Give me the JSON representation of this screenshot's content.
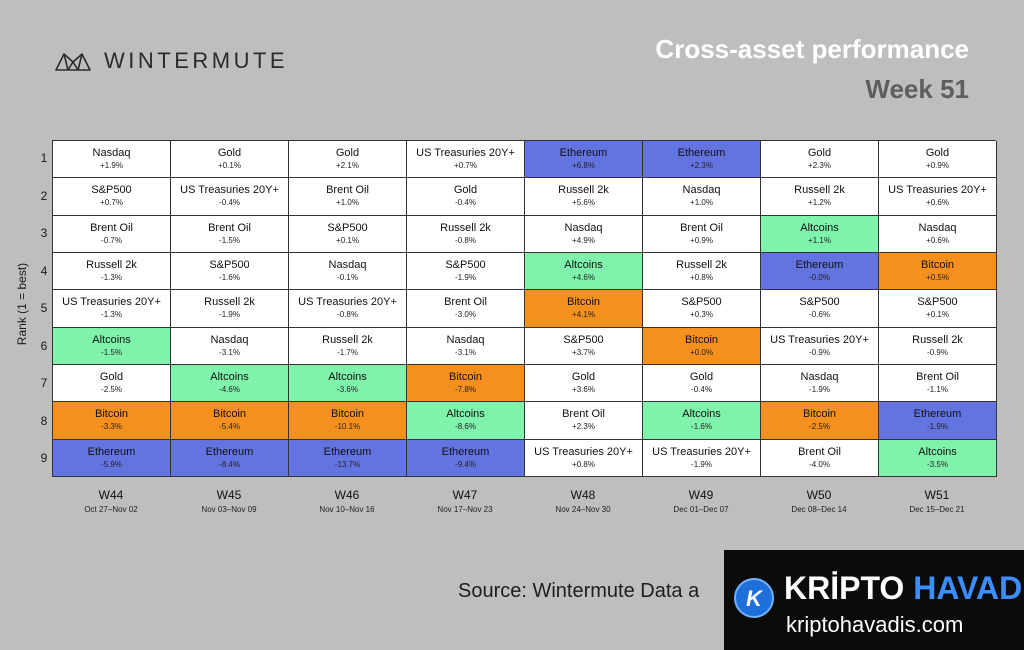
{
  "brand": {
    "logo_icon": "wintermute-logo-icon",
    "name": "WINTERMUTE"
  },
  "header": {
    "title": "Cross-asset performance",
    "subtitle": "Week 51"
  },
  "colors": {
    "Ethereum": "#6374e1",
    "Bitcoin": "#f5901e",
    "Altcoins": "#7ff2ab",
    "default": "#ffffff"
  },
  "chart_data": {
    "type": "table",
    "ylabel": "Rank (1 = best)",
    "ranks": [
      "1",
      "2",
      "3",
      "4",
      "5",
      "6",
      "7",
      "8",
      "9"
    ],
    "weeks": [
      {
        "label": "W44",
        "range": "Oct 27–Nov 02",
        "cells": [
          {
            "asset": "Nasdaq",
            "ret": "+1.9%"
          },
          {
            "asset": "S&P500",
            "ret": "+0.7%"
          },
          {
            "asset": "Brent Oil",
            "ret": "-0.7%"
          },
          {
            "asset": "Russell 2k",
            "ret": "-1.3%"
          },
          {
            "asset": "US Treasuries 20Y+",
            "ret": "-1.3%"
          },
          {
            "asset": "Altcoins",
            "ret": "-1.5%"
          },
          {
            "asset": "Gold",
            "ret": "-2.5%"
          },
          {
            "asset": "Bitcoin",
            "ret": "-3.3%"
          },
          {
            "asset": "Ethereum",
            "ret": "-5.9%"
          }
        ]
      },
      {
        "label": "W45",
        "range": "Nov 03–Nov 09",
        "cells": [
          {
            "asset": "Gold",
            "ret": "+0.1%"
          },
          {
            "asset": "US Treasuries 20Y+",
            "ret": "-0.4%"
          },
          {
            "asset": "Brent Oil",
            "ret": "-1.5%"
          },
          {
            "asset": "S&P500",
            "ret": "-1.6%"
          },
          {
            "asset": "Russell 2k",
            "ret": "-1.9%"
          },
          {
            "asset": "Nasdaq",
            "ret": "-3.1%"
          },
          {
            "asset": "Altcoins",
            "ret": "-4.6%"
          },
          {
            "asset": "Bitcoin",
            "ret": "-5.4%"
          },
          {
            "asset": "Ethereum",
            "ret": "-8.4%"
          }
        ]
      },
      {
        "label": "W46",
        "range": "Nov 10–Nov 16",
        "cells": [
          {
            "asset": "Gold",
            "ret": "+2.1%"
          },
          {
            "asset": "Brent Oil",
            "ret": "+1.0%"
          },
          {
            "asset": "S&P500",
            "ret": "+0.1%"
          },
          {
            "asset": "Nasdaq",
            "ret": "-0.1%"
          },
          {
            "asset": "US Treasuries 20Y+",
            "ret": "-0.8%"
          },
          {
            "asset": "Russell 2k",
            "ret": "-1.7%"
          },
          {
            "asset": "Altcoins",
            "ret": "-3.6%"
          },
          {
            "asset": "Bitcoin",
            "ret": "-10.1%"
          },
          {
            "asset": "Ethereum",
            "ret": "-13.7%"
          }
        ]
      },
      {
        "label": "W47",
        "range": "Nov 17–Nov 23",
        "cells": [
          {
            "asset": "US Treasuries 20Y+",
            "ret": "+0.7%"
          },
          {
            "asset": "Gold",
            "ret": "-0.4%"
          },
          {
            "asset": "Russell 2k",
            "ret": "-0.8%"
          },
          {
            "asset": "S&P500",
            "ret": "-1.9%"
          },
          {
            "asset": "Brent Oil",
            "ret": "-3.0%"
          },
          {
            "asset": "Nasdaq",
            "ret": "-3.1%"
          },
          {
            "asset": "Bitcoin",
            "ret": "-7.8%"
          },
          {
            "asset": "Altcoins",
            "ret": "-8.6%"
          },
          {
            "asset": "Ethereum",
            "ret": "-9.4%"
          }
        ]
      },
      {
        "label": "W48",
        "range": "Nov 24–Nov 30",
        "cells": [
          {
            "asset": "Ethereum",
            "ret": "+6.8%"
          },
          {
            "asset": "Russell 2k",
            "ret": "+5.6%"
          },
          {
            "asset": "Nasdaq",
            "ret": "+4.9%"
          },
          {
            "asset": "Altcoins",
            "ret": "+4.6%"
          },
          {
            "asset": "Bitcoin",
            "ret": "+4.1%"
          },
          {
            "asset": "S&P500",
            "ret": "+3.7%"
          },
          {
            "asset": "Gold",
            "ret": "+3.6%"
          },
          {
            "asset": "Brent Oil",
            "ret": "+2.3%"
          },
          {
            "asset": "US Treasuries 20Y+",
            "ret": "+0.8%"
          }
        ]
      },
      {
        "label": "W49",
        "range": "Dec 01–Dec 07",
        "cells": [
          {
            "asset": "Ethereum",
            "ret": "+2.3%"
          },
          {
            "asset": "Nasdaq",
            "ret": "+1.0%"
          },
          {
            "asset": "Brent Oil",
            "ret": "+0.9%"
          },
          {
            "asset": "Russell 2k",
            "ret": "+0.8%"
          },
          {
            "asset": "S&P500",
            "ret": "+0.3%"
          },
          {
            "asset": "Bitcoin",
            "ret": "+0.0%"
          },
          {
            "asset": "Gold",
            "ret": "-0.4%"
          },
          {
            "asset": "Altcoins",
            "ret": "-1.6%"
          },
          {
            "asset": "US Treasuries 20Y+",
            "ret": "-1.9%"
          }
        ]
      },
      {
        "label": "W50",
        "range": "Dec 08–Dec 14",
        "cells": [
          {
            "asset": "Gold",
            "ret": "+2.3%"
          },
          {
            "asset": "Russell 2k",
            "ret": "+1.2%"
          },
          {
            "asset": "Altcoins",
            "ret": "+1.1%"
          },
          {
            "asset": "Ethereum",
            "ret": "-0.0%"
          },
          {
            "asset": "S&P500",
            "ret": "-0.6%"
          },
          {
            "asset": "US Treasuries 20Y+",
            "ret": "-0.9%"
          },
          {
            "asset": "Nasdaq",
            "ret": "-1.9%"
          },
          {
            "asset": "Bitcoin",
            "ret": "-2.5%"
          },
          {
            "asset": "Brent Oil",
            "ret": "-4.0%"
          }
        ]
      },
      {
        "label": "W51",
        "range": "Dec 15–Dec 21",
        "cells": [
          {
            "asset": "Gold",
            "ret": "+0.9%"
          },
          {
            "asset": "US Treasuries 20Y+",
            "ret": "+0.6%"
          },
          {
            "asset": "Nasdaq",
            "ret": "+0.6%"
          },
          {
            "asset": "Bitcoin",
            "ret": "+0.5%"
          },
          {
            "asset": "S&P500",
            "ret": "+0.1%"
          },
          {
            "asset": "Russell 2k",
            "ret": "-0.9%"
          },
          {
            "asset": "Brent Oil",
            "ret": "-1.1%"
          },
          {
            "asset": "Ethereum",
            "ret": "-1.9%"
          },
          {
            "asset": "Altcoins",
            "ret": "-3.5%"
          }
        ]
      }
    ]
  },
  "footer": {
    "source": "Source: Wintermute  Data a"
  },
  "watermark": {
    "icon": "kriptohavadis-k-icon",
    "word1": "KRİPTO",
    "word2": "HAVADİS",
    "url": "kriptohavadis.com"
  }
}
